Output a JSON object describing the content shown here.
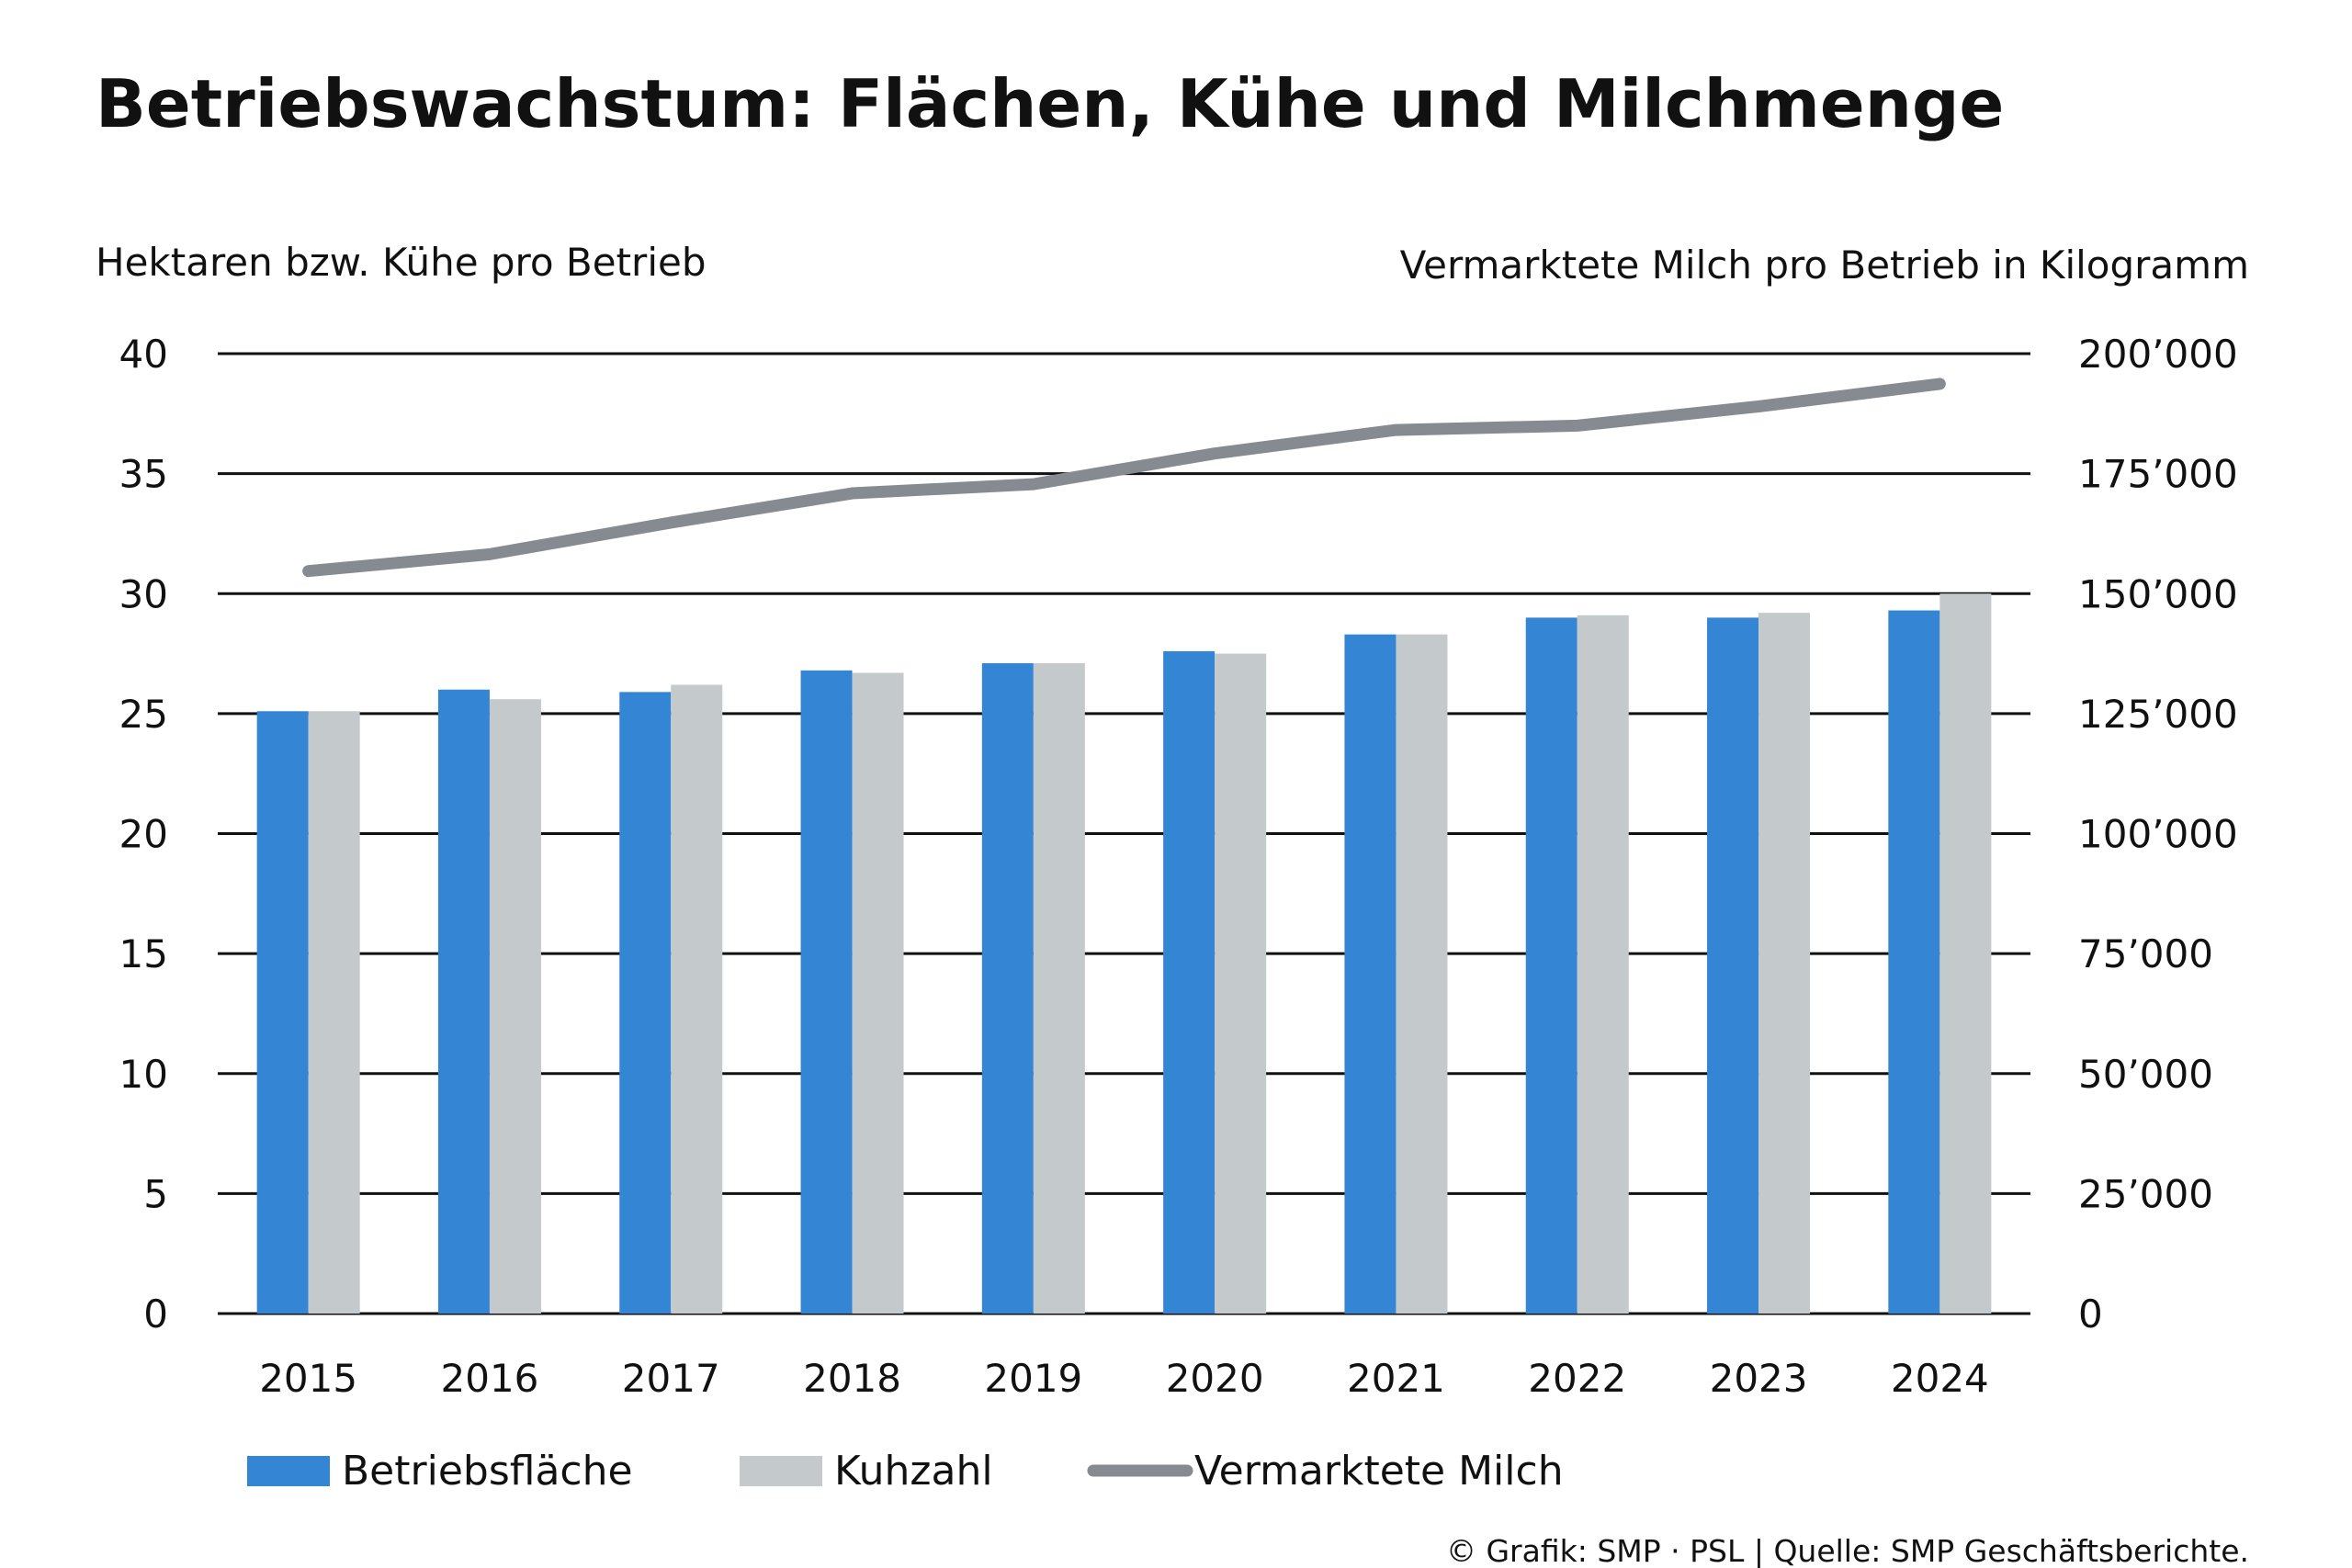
{
  "title": "Betriebswachstum: Flächen, Kühe und Milchmenge",
  "source": "© Grafik: SMP · PSL | Quelle: SMP Geschäftsberichte.",
  "colors": {
    "flaeche": "#3585d5",
    "kuh": "#c4c9cc",
    "milch": "#858b90",
    "grid": "#111111"
  },
  "chart_data": {
    "type": "bar",
    "left_axis_label": "Hektaren bzw. Kühe pro Betrieb",
    "right_axis_label": "Vermarktete Milch pro Betrieb in Kilogramm",
    "categories": [
      "2015",
      "2016",
      "2017",
      "2018",
      "2019",
      "2020",
      "2021",
      "2022",
      "2023",
      "2024"
    ],
    "left_ylim": [
      0,
      40
    ],
    "left_ticks": [
      "0",
      "5",
      "10",
      "15",
      "20",
      "25",
      "30",
      "35",
      "40"
    ],
    "right_ylim": [
      0,
      200000
    ],
    "right_ticks": [
      "0",
      "25’000",
      "50’000",
      "75’000",
      "100’000",
      "125’000",
      "150’000",
      "175’000",
      "200’000"
    ],
    "grid": true,
    "legend_position": "bottom",
    "series": [
      {
        "name": "Betriebsfläche",
        "type": "bar",
        "axis": "left",
        "values": [
          25.1,
          26.0,
          25.9,
          26.8,
          27.1,
          27.6,
          28.3,
          29.0,
          29.0,
          29.3
        ]
      },
      {
        "name": "Kuhzahl",
        "type": "bar",
        "axis": "left",
        "values": [
          25.1,
          25.6,
          26.2,
          26.7,
          27.1,
          27.5,
          28.3,
          29.1,
          29.2,
          30.0
        ]
      },
      {
        "name": "Vermarktete Milch",
        "type": "line",
        "axis": "right",
        "values": [
          154700,
          158200,
          164800,
          170900,
          172800,
          179200,
          184100,
          185000,
          189000,
          193700
        ]
      }
    ]
  }
}
